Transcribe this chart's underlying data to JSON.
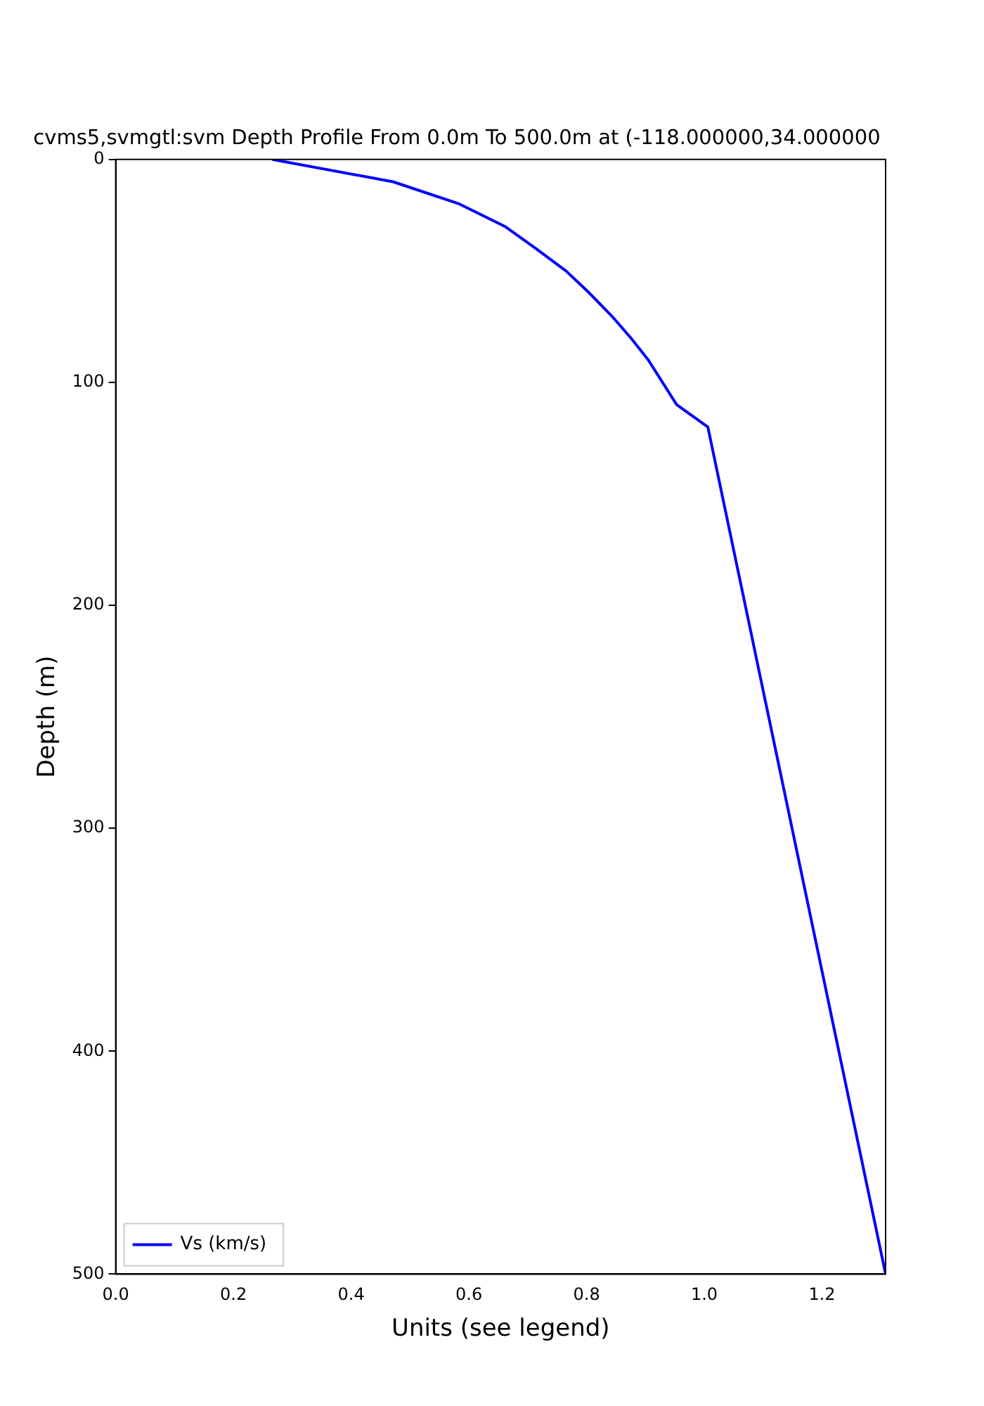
{
  "chart_data": {
    "type": "line",
    "title": "cvms5,svmgtl:svm Depth Profile From 0.0m To 500.0m at (-118.000000,34.000000",
    "xlabel": "Units (see legend)",
    "ylabel": "Depth (m)",
    "series": [
      {
        "name": "Vs (km/s)",
        "color": "#0000ff",
        "x": [
          0.266,
          0.471,
          0.584,
          0.661,
          0.714,
          0.765,
          0.805,
          0.842,
          0.875,
          0.905,
          0.953,
          1.006,
          1.308
        ],
        "values": [
          0,
          10,
          20,
          30,
          40,
          50,
          60,
          70,
          80,
          90,
          110,
          120,
          500
        ]
      }
    ],
    "xlim": [
      0,
      1.308
    ],
    "xticks": [
      {
        "value": 0,
        "label": "0.0"
      },
      {
        "value": 0.2,
        "label": "0.2"
      },
      {
        "value": 0.4,
        "label": "0.4"
      },
      {
        "value": 0.6,
        "label": "0.6"
      },
      {
        "value": 0.8,
        "label": "0.8"
      },
      {
        "value": 1.0,
        "label": "1.0"
      },
      {
        "value": 1.2,
        "label": "1.2"
      }
    ],
    "ylim": [
      500,
      0
    ],
    "yticks": [
      0,
      100,
      200,
      300,
      400,
      500
    ],
    "legend": "bottom left",
    "grid": false,
    "marker": "none",
    "line_style": "solid"
  }
}
